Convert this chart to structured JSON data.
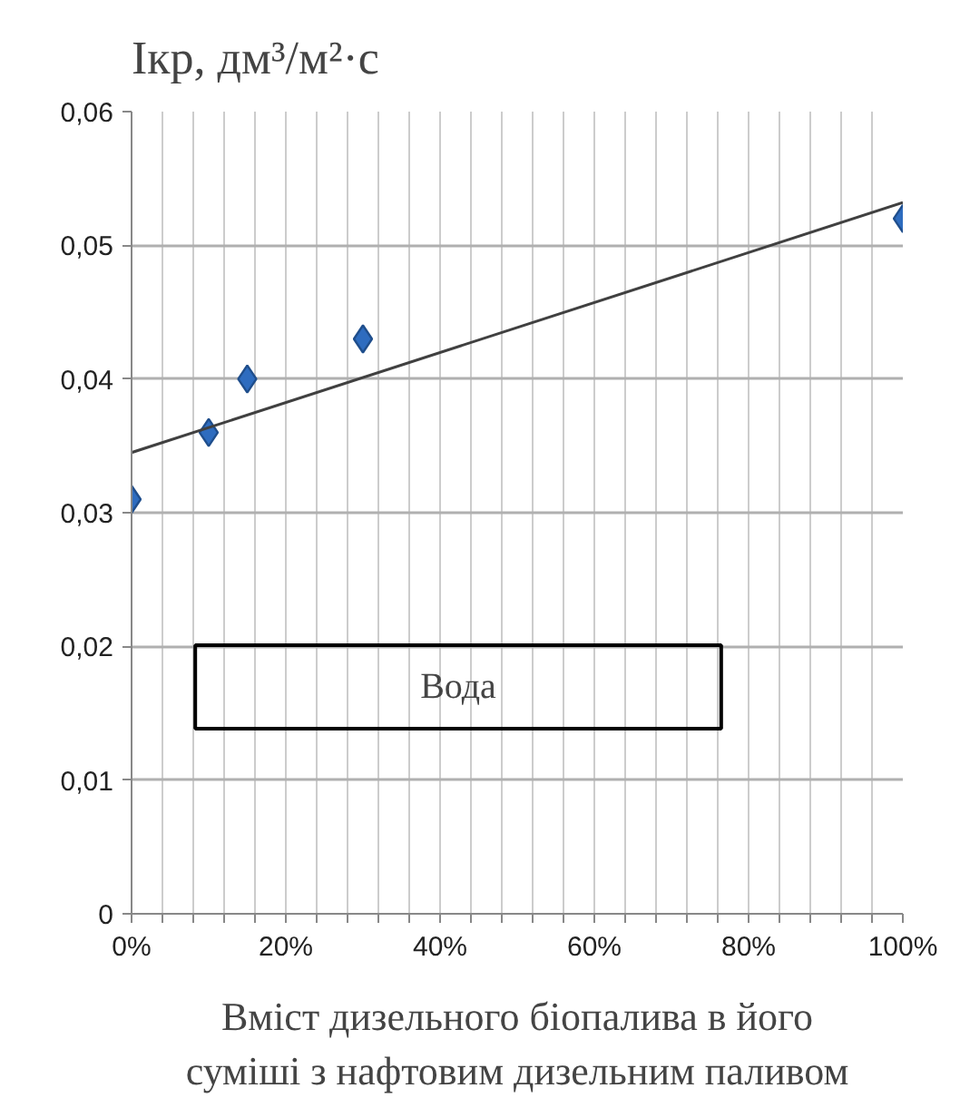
{
  "chart_data": {
    "type": "scatter",
    "title": "Iкр, дм³/м²·с",
    "xlabel": "Вміст дизельного біопалива в його\nсуміші з нафтовим дизельним паливом",
    "series": [
      {
        "color": "#2e6cbf",
        "x": [
          0,
          10,
          15,
          30,
          100
        ],
        "values": [
          0.031,
          0.036,
          0.04,
          0.043,
          0.052
        ],
        "marker": "diamond"
      },
      {
        "type": "line",
        "color": "#404040",
        "x": [
          0,
          100
        ],
        "values": [
          0.0345,
          0.0532
        ],
        "marker": "none",
        "line_style": "solid"
      }
    ],
    "annotations": [
      "Вода"
    ],
    "xlim": [
      0,
      100
    ],
    "ylim": [
      0,
      0.06
    ],
    "xticks": [
      {
        "value": 0,
        "label": "0%"
      },
      {
        "value": 4,
        "label": null
      },
      {
        "value": 8,
        "label": null
      },
      {
        "value": 12,
        "label": null
      },
      {
        "value": 16,
        "label": null
      },
      {
        "value": 20,
        "label": "20%"
      },
      {
        "value": 24,
        "label": null
      },
      {
        "value": 28,
        "label": null
      },
      {
        "value": 32,
        "label": null
      },
      {
        "value": 36,
        "label": null
      },
      {
        "value": 40,
        "label": "40%"
      },
      {
        "value": 44,
        "label": null
      },
      {
        "value": 48,
        "label": null
      },
      {
        "value": 52,
        "label": null
      },
      {
        "value": 56,
        "label": null
      },
      {
        "value": 60,
        "label": "60%"
      },
      {
        "value": 64,
        "label": null
      },
      {
        "value": 68,
        "label": null
      },
      {
        "value": 72,
        "label": null
      },
      {
        "value": 76,
        "label": null
      },
      {
        "value": 80,
        "label": "80%"
      },
      {
        "value": 84,
        "label": null
      },
      {
        "value": 88,
        "label": null
      },
      {
        "value": 92,
        "label": null
      },
      {
        "value": 96,
        "label": null
      },
      {
        "value": 100,
        "label": "100%"
      }
    ],
    "yticks": [
      {
        "value": 0,
        "label": "0"
      },
      {
        "value": 0.01,
        "label": "0,01"
      },
      {
        "value": 0.02,
        "label": "0,02"
      },
      {
        "value": 0.03,
        "label": "0,03"
      },
      {
        "value": 0.04,
        "label": "0,04"
      },
      {
        "value": 0.05,
        "label": "0,05"
      },
      {
        "value": 0.06,
        "label": "0,06"
      }
    ],
    "grid": true
  }
}
